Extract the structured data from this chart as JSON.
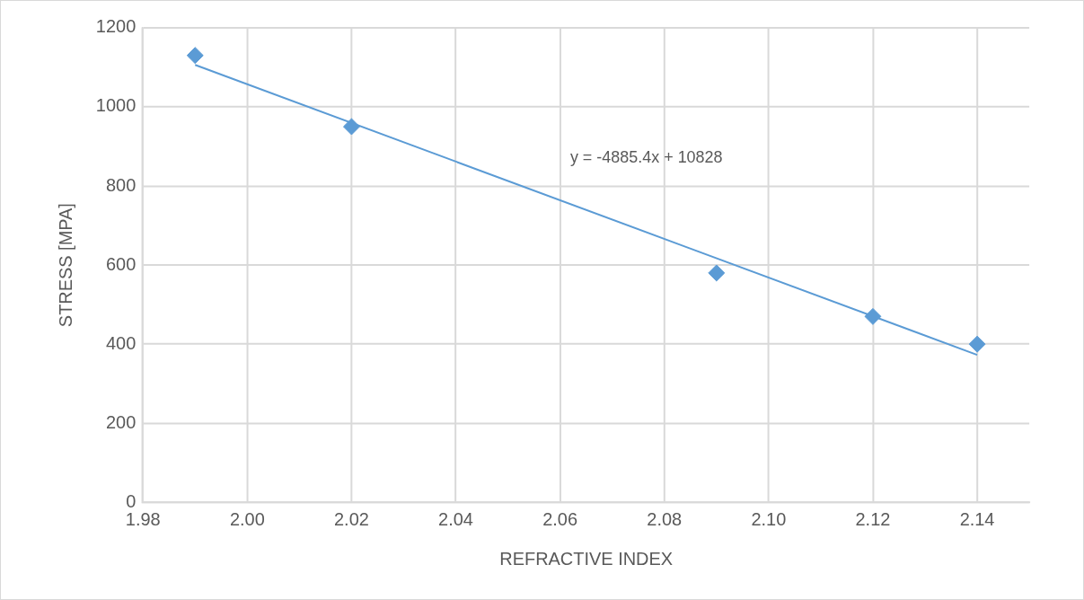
{
  "chart_data": {
    "type": "scatter",
    "xlabel": "REFRACTIVE INDEX",
    "ylabel": "STRESS [MPA]",
    "xlim": [
      1.98,
      2.15
    ],
    "xticks": [
      {
        "value": 1.98,
        "label": "1.98"
      },
      {
        "value": 2.0,
        "label": "2.00"
      },
      {
        "value": 2.02,
        "label": "2.02"
      },
      {
        "value": 2.04,
        "label": "2.04"
      },
      {
        "value": 2.06,
        "label": "2.06"
      },
      {
        "value": 2.08,
        "label": "2.08"
      },
      {
        "value": 2.1,
        "label": "2.10"
      },
      {
        "value": 2.12,
        "label": "2.12"
      },
      {
        "value": 2.14,
        "label": "2.14"
      }
    ],
    "ylim": [
      0,
      1200
    ],
    "yticks": [
      0,
      200,
      400,
      600,
      800,
      1000,
      1200
    ],
    "grid": true,
    "legend": false,
    "series": [
      {
        "type": "scatter",
        "color": "#5b9bd5",
        "marker": "diamond",
        "x": [
          1.99,
          2.02,
          2.09,
          2.12,
          2.14
        ],
        "values": [
          1130,
          950,
          580,
          470,
          400
        ]
      },
      {
        "type": "line",
        "color": "#5b9bd5",
        "marker": "none",
        "line_style": "solid",
        "x": [
          1.99,
          2.14
        ],
        "values": [
          1106,
          373
        ]
      }
    ],
    "annotations": [
      "y = -4885.4x + 10828"
    ]
  }
}
